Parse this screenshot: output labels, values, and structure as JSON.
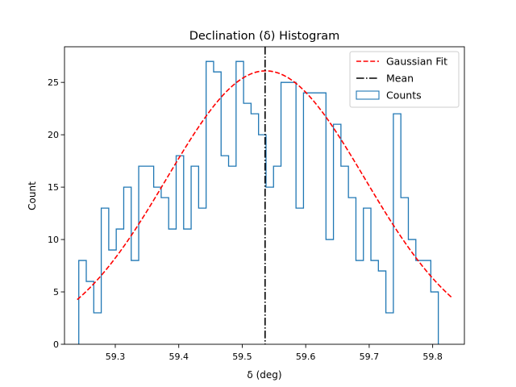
{
  "chart_data": {
    "type": "histogram",
    "title": "Declination (δ) Histogram",
    "xlabel": "δ (deg)",
    "ylabel": "Count",
    "xlim": [
      59.22,
      59.85
    ],
    "ylim": [
      0,
      28.4
    ],
    "xticks": [
      59.3,
      59.4,
      59.5,
      59.6,
      59.7,
      59.8
    ],
    "xtick_labels": [
      "59.3",
      "59.4",
      "59.5",
      "59.6",
      "59.7",
      "59.8"
    ],
    "yticks": [
      0,
      5,
      10,
      15,
      20,
      25
    ],
    "ytick_labels": [
      "0",
      "5",
      "10",
      "15",
      "20",
      "25"
    ],
    "bins": {
      "start": 59.2425,
      "width": 0.0118,
      "counts": [
        8,
        6,
        3,
        13,
        9,
        11,
        15,
        8,
        17,
        17,
        15,
        14,
        11,
        18,
        11,
        17,
        13,
        27,
        26,
        18,
        17,
        27,
        23,
        22,
        20,
        15,
        17,
        25,
        25,
        13,
        24,
        24,
        24,
        10,
        21,
        17,
        14,
        8,
        13,
        8,
        7,
        3,
        22,
        14,
        10,
        8,
        8,
        5
      ]
    },
    "gaussian_fit": {
      "mean": 59.537,
      "sigma": 0.156,
      "amplitude": 26.1,
      "x_range": [
        59.24,
        59.83
      ]
    },
    "mean_line": 59.536,
    "legend": {
      "placement": "upper right",
      "entries": [
        {
          "label": "Gaussian Fit",
          "style": "dashed",
          "color": "#ff0000"
        },
        {
          "label": "Mean",
          "style": "dashdot",
          "color": "#000000"
        },
        {
          "label": "Counts",
          "style": "step",
          "color": "#1f77b4"
        }
      ]
    },
    "colors": {
      "counts": "#1f77b4",
      "fit": "#ff0000",
      "mean": "#000000"
    }
  }
}
